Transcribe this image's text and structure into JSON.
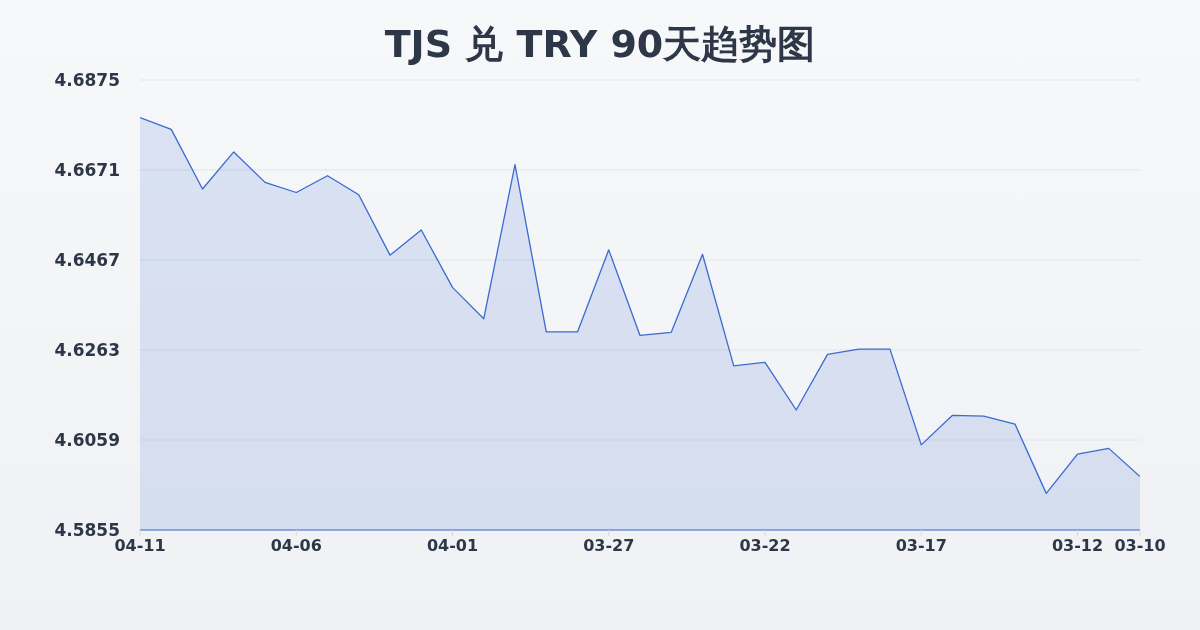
{
  "chart_data": {
    "type": "area",
    "title": "TJS 兑 TRY 90天趋势图",
    "x": [
      "--04-11",
      "--04-10",
      "--04-09",
      "--04-08",
      "--04-07",
      "--04-06",
      "--04-05",
      "--04-04",
      "--04-03",
      "--04-02",
      "--04-01",
      "--03-31",
      "--03-30",
      "--03-29",
      "--03-28",
      "--03-27",
      "--03-26",
      "--03-25",
      "--03-24",
      "--03-23",
      "--03-22",
      "--03-21",
      "--03-20",
      "--03-19",
      "--03-18",
      "--03-17",
      "--03-16",
      "--03-15",
      "--03-14",
      "--03-13",
      "--03-12",
      "--03-11",
      "--03-10"
    ],
    "values": [
      4.679,
      4.6763,
      4.6628,
      4.6712,
      4.6643,
      4.662,
      4.6658,
      4.6615,
      4.6478,
      4.6535,
      4.6405,
      4.6334,
      4.6683,
      4.6304,
      4.6304,
      4.649,
      4.6296,
      4.6303,
      4.648,
      4.6227,
      4.6235,
      4.6127,
      4.6253,
      4.6265,
      4.6265,
      4.6048,
      4.6115,
      4.6113,
      4.6095,
      4.5938,
      4.6027,
      4.604,
      4.5976
    ],
    "color": "#3a6bcf",
    "xlim": [
      "--04-11",
      "--03-10"
    ],
    "xticks": [
      {
        "value": "--04-11",
        "label": "04-11"
      },
      {
        "value": "--04-06",
        "label": "04-06"
      },
      {
        "value": "--04-01",
        "label": "04-01"
      },
      {
        "value": "--03-27",
        "label": "03-27"
      },
      {
        "value": "--03-22",
        "label": "03-22"
      },
      {
        "value": "--03-17",
        "label": "03-17"
      },
      {
        "value": "--03-12",
        "label": "03-12"
      },
      {
        "value": "--03-10",
        "label": "03-10"
      }
    ],
    "ylim": [
      4.5855,
      4.6875
    ],
    "yticks": [
      4.5855,
      4.6059,
      4.6263,
      4.6467,
      4.6671,
      4.6875
    ],
    "grid": "y"
  }
}
